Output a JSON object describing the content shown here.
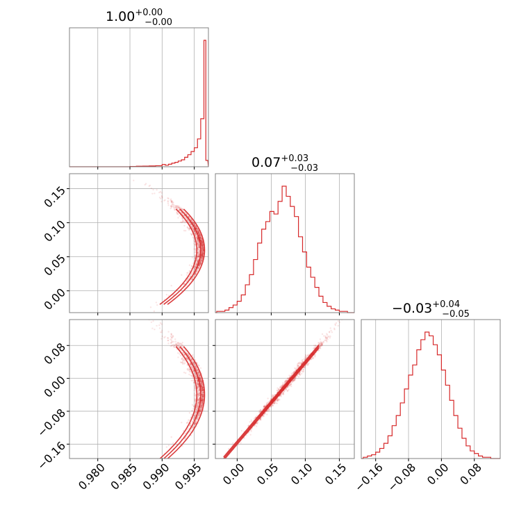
{
  "chart_data": {
    "type": "corner",
    "color": "#d62728",
    "grid": true,
    "parameters": [
      {
        "name": "",
        "range": [
          0.9756,
          0.9972
        ],
        "ticks": [
          {
            "value": 0.98,
            "label": "0.980"
          },
          {
            "value": 0.985,
            "label": "0.985"
          },
          {
            "value": 0.99,
            "label": "0.990"
          },
          {
            "value": 0.995,
            "label": "0.995"
          }
        ],
        "summary": {
          "median": "1.00",
          "plus": "+0.00",
          "minus": "−0.00"
        },
        "histogram": {
          "x": [
            0.985,
            0.986,
            0.987,
            0.988,
            0.989,
            0.99,
            0.9905,
            0.991,
            0.9915,
            0.992,
            0.9925,
            0.993,
            0.9935,
            0.994,
            0.9945,
            0.995,
            0.9955,
            0.996,
            0.9965,
            0.9968
          ],
          "values": [
            0.002,
            0.004,
            0.005,
            0.006,
            0.008,
            0.018,
            0.012,
            0.02,
            0.028,
            0.035,
            0.045,
            0.055,
            0.075,
            0.095,
            0.12,
            0.15,
            0.22,
            0.38,
            1.0,
            0.05
          ]
        }
      },
      {
        "name": "",
        "range": [
          -0.032,
          0.172
        ],
        "ticks": [
          {
            "value": 0.0,
            "label": "0.00"
          },
          {
            "value": 0.05,
            "label": "0.05"
          },
          {
            "value": 0.1,
            "label": "0.10"
          },
          {
            "value": 0.15,
            "label": "0.15"
          }
        ],
        "summary": {
          "median": "0.07",
          "plus": "+0.03",
          "minus": "−0.03"
        },
        "histogram": {
          "x": [
            -0.03,
            -0.024,
            -0.018,
            -0.012,
            -0.006,
            0.0,
            0.006,
            0.012,
            0.018,
            0.024,
            0.03,
            0.036,
            0.042,
            0.048,
            0.054,
            0.06,
            0.066,
            0.072,
            0.078,
            0.084,
            0.09,
            0.096,
            0.102,
            0.108,
            0.114,
            0.12,
            0.126,
            0.132,
            0.138,
            0.144,
            0.15,
            0.156,
            0.162
          ],
          "values": [
            0.01,
            0.01,
            0.02,
            0.04,
            0.06,
            0.09,
            0.14,
            0.22,
            0.3,
            0.42,
            0.55,
            0.66,
            0.72,
            0.8,
            0.78,
            0.88,
            1.0,
            0.92,
            0.84,
            0.76,
            0.6,
            0.48,
            0.36,
            0.28,
            0.2,
            0.13,
            0.08,
            0.05,
            0.03,
            0.02,
            0.01,
            0.01,
            0.0
          ]
        }
      },
      {
        "name": "",
        "range": [
          -0.195,
          0.143
        ],
        "ticks": [
          {
            "value": -0.16,
            "label": "−0.16"
          },
          {
            "value": -0.08,
            "label": "−0.08"
          },
          {
            "value": 0.0,
            "label": "0.00"
          },
          {
            "value": 0.08,
            "label": "0.08"
          }
        ],
        "summary": {
          "median": "−0.03",
          "plus": "+0.04",
          "minus": "−0.05"
        },
        "histogram": {
          "x": [
            -0.19,
            -0.18,
            -0.17,
            -0.16,
            -0.15,
            -0.14,
            -0.13,
            -0.12,
            -0.11,
            -0.1,
            -0.09,
            -0.08,
            -0.07,
            -0.06,
            -0.05,
            -0.04,
            -0.03,
            -0.02,
            -0.01,
            0.0,
            0.01,
            0.02,
            0.03,
            0.04,
            0.05,
            0.06,
            0.07,
            0.08,
            0.09,
            0.1,
            0.11,
            0.12,
            0.13
          ],
          "values": [
            0.01,
            0.02,
            0.03,
            0.05,
            0.08,
            0.12,
            0.18,
            0.26,
            0.34,
            0.44,
            0.55,
            0.66,
            0.74,
            0.86,
            0.94,
            1.0,
            0.97,
            0.9,
            0.82,
            0.7,
            0.58,
            0.46,
            0.34,
            0.24,
            0.16,
            0.1,
            0.06,
            0.04,
            0.02,
            0.01,
            0.01,
            0.0,
            0.0
          ]
        }
      }
    ]
  }
}
